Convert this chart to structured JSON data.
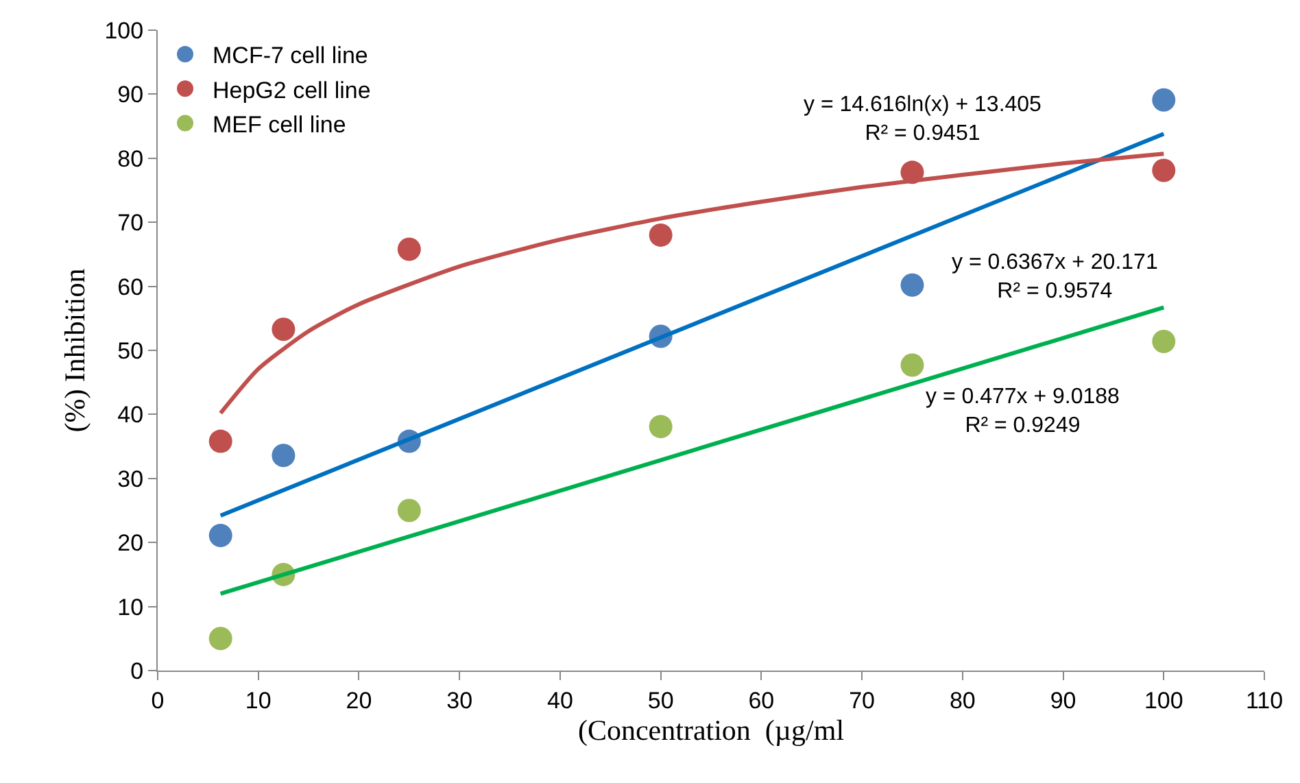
{
  "chart_data": {
    "type": "scatter",
    "xlabel": "(Concentration  (µg/ml",
    "ylabel": "(%) Inhibition",
    "x": [
      6.25,
      12.5,
      25,
      50,
      75,
      100
    ],
    "series": [
      {
        "name": "MCF-7 cell line",
        "color": "#4f81bd",
        "values": [
          21.1,
          33.6,
          35.8,
          52.2,
          60.2,
          89.1
        ]
      },
      {
        "name": "HepG2 cell line",
        "color": "#c0504d",
        "values": [
          35.8,
          53.3,
          65.8,
          68.0,
          77.8,
          78.1
        ]
      },
      {
        "name": "MEF cell line",
        "color": "#9bbb59",
        "values": [
          5.0,
          15.0,
          25.0,
          38.1,
          47.7,
          51.4
        ]
      },
      {
        "type": "line",
        "marker": "none",
        "line_style": "solid",
        "color": "#0070c0",
        "x": [
          6.25,
          100
        ],
        "values": [
          24.2,
          83.8
        ]
      },
      {
        "type": "line",
        "marker": "none",
        "line_style": "solid",
        "color": "#c0504d",
        "x": [
          6.25,
          10,
          15,
          20,
          30,
          40,
          50,
          60,
          70,
          80,
          90,
          100
        ],
        "values": [
          40.2,
          47.1,
          53.0,
          57.2,
          63.1,
          67.3,
          70.6,
          73.2,
          75.5,
          77.4,
          79.2,
          80.7
        ]
      },
      {
        "type": "line",
        "marker": "none",
        "line_style": "solid",
        "color": "#00b050",
        "x": [
          6.25,
          100
        ],
        "values": [
          12.0,
          56.7
        ]
      }
    ],
    "annotations": [
      "y = 14.616ln(x) + 13.405\nR² = 0.9451",
      "y = 0.6367x + 20.171\nR² = 0.9574",
      "y = 0.477x + 9.0188\nR² = 0.9249"
    ],
    "xlim": [
      0,
      110
    ],
    "xticks": [
      0,
      10,
      20,
      30,
      40,
      50,
      60,
      70,
      80,
      90,
      100,
      110
    ],
    "ylim": [
      0,
      100
    ],
    "yticks": [
      0,
      10,
      20,
      30,
      40,
      50,
      60,
      70,
      80,
      90,
      100
    ],
    "legend": "top left",
    "marker": "circle"
  }
}
